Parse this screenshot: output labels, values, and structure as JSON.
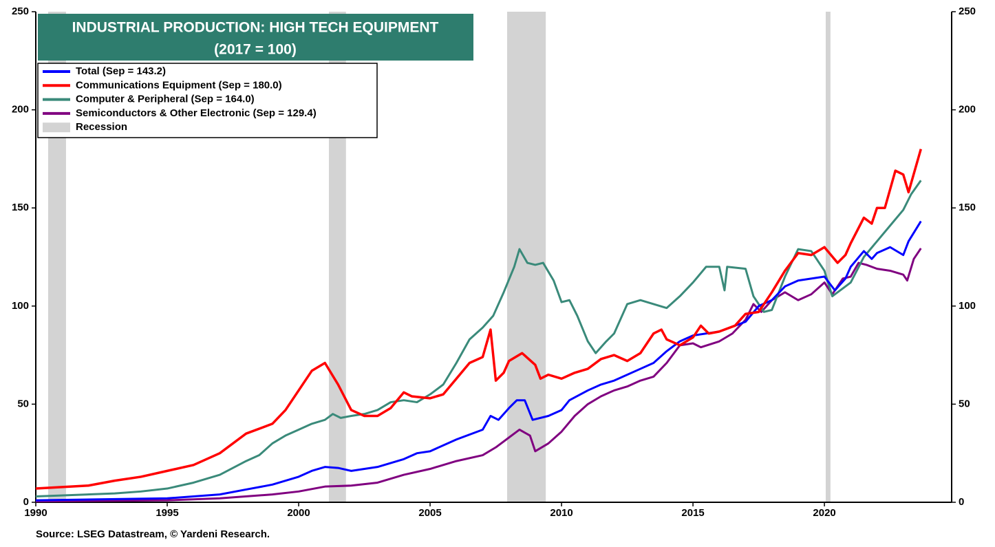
{
  "chart_data": {
    "type": "line",
    "title": "INDUSTRIAL PRODUCTION: HIGH TECH EQUIPMENT",
    "subtitle": "(2017 = 100)",
    "source": "Source: LSEG Datastream, © Yardeni Research.",
    "xlim": [
      1990,
      2024.84
    ],
    "xticks": [
      1990,
      1995,
      2000,
      2005,
      2010,
      2015,
      2020
    ],
    "ylim": [
      0,
      250
    ],
    "yticks": [
      0,
      50,
      100,
      150,
      200,
      250
    ],
    "y2lim": [
      0,
      250
    ],
    "y2ticks": [
      0,
      50,
      100,
      150,
      200,
      250
    ],
    "legend": "upper left",
    "recession_name": "Recession",
    "recession_color": "#d3d3d3",
    "recessions": [
      {
        "start": 1990.47,
        "end": 1991.15
      },
      {
        "start": 2001.15,
        "end": 2001.8
      },
      {
        "start": 2007.93,
        "end": 2009.4
      },
      {
        "start": 2020.05,
        "end": 2020.23
      }
    ],
    "series": [
      {
        "name": "Total (Sep = 143.2)",
        "color": "#0000ff",
        "x": [
          1990,
          1995,
          1997,
          1998,
          1999,
          2000,
          2000.5,
          2001,
          2001.5,
          2002,
          2003,
          2004,
          2004.5,
          2005,
          2006,
          2007,
          2007.3,
          2007.6,
          2008,
          2008.3,
          2008.6,
          2008.9,
          2009.5,
          2010,
          2010.3,
          2011,
          2011.5,
          2012,
          2013,
          2013.5,
          2014,
          2014.5,
          2015,
          2016,
          2017,
          2017.5,
          2018,
          2018.5,
          2019,
          2019.5,
          2020,
          2020.4,
          2020.8,
          2021,
          2021.5,
          2021.8,
          2022,
          2022.5,
          2023,
          2023.2,
          2023.67
        ],
        "values": [
          1,
          2,
          4,
          6.5,
          9,
          13,
          16,
          18,
          17.5,
          16,
          18,
          22,
          25,
          26,
          32,
          37,
          44,
          42,
          48,
          52,
          52,
          42,
          44,
          47,
          52,
          57,
          60,
          62,
          68,
          71,
          77,
          82,
          85,
          87,
          92,
          100,
          103,
          110,
          113,
          114,
          115,
          108,
          114,
          120,
          128,
          124,
          127,
          130,
          126,
          133,
          143.2
        ]
      },
      {
        "name": "Communications Equipment (Sep = 180.0)",
        "color": "#ff0000",
        "x": [
          1990,
          1992,
          1993,
          1994,
          1995,
          1996,
          1997,
          1998,
          1999,
          1999.5,
          2000,
          2000.5,
          2001,
          2001.5,
          2002,
          2002.5,
          2003,
          2003.5,
          2004,
          2004.3,
          2005,
          2005.5,
          2006,
          2006.5,
          2007,
          2007.3,
          2007.5,
          2007.8,
          2008,
          2008.5,
          2009,
          2009.2,
          2009.5,
          2010,
          2010.5,
          2011,
          2011.5,
          2012,
          2012.5,
          2013,
          2013.5,
          2013.8,
          2014,
          2014.5,
          2015,
          2015.3,
          2015.6,
          2016,
          2016.6,
          2017,
          2017.5,
          2018,
          2018.5,
          2019,
          2019.5,
          2020,
          2020.5,
          2020.8,
          2021,
          2021.5,
          2021.8,
          2022,
          2022.3,
          2022.7,
          2023,
          2023.2,
          2023.67
        ],
        "values": [
          7,
          8.5,
          11,
          13,
          16,
          19,
          25,
          35,
          40,
          47,
          57,
          67,
          71,
          60,
          47,
          44,
          44,
          48,
          56,
          54,
          53,
          55,
          63,
          71,
          74,
          88,
          62,
          66,
          72,
          76,
          70,
          63,
          65,
          63,
          66,
          68,
          73,
          75,
          72,
          76,
          86,
          88,
          83,
          80,
          84,
          90,
          86,
          87,
          90,
          96,
          97,
          107,
          118,
          127,
          126,
          130,
          122,
          126,
          132,
          145,
          142,
          150,
          150,
          169,
          167,
          158,
          180
        ]
      },
      {
        "name": "Computer & Peripheral (Sep = 164.0)",
        "color": "#3a8a7a",
        "x": [
          1990,
          1993,
          1994,
          1995,
          1996,
          1997,
          1998,
          1998.5,
          1999,
          1999.5,
          2000,
          2000.5,
          2001,
          2001.3,
          2001.6,
          2002,
          2002.5,
          2003,
          2003.5,
          2004,
          2004.5,
          2005,
          2005.5,
          2006,
          2006.5,
          2007,
          2007.4,
          2007.8,
          2008.2,
          2008.4,
          2008.7,
          2009,
          2009.3,
          2009.7,
          2010,
          2010.3,
          2010.6,
          2011,
          2011.3,
          2011.7,
          2012,
          2012.5,
          2013,
          2013.5,
          2014,
          2014.5,
          2015,
          2015.5,
          2016,
          2016.2,
          2016.3,
          2017,
          2017.3,
          2017.7,
          2018,
          2018.5,
          2019,
          2019.5,
          2020,
          2020.3,
          2020.8,
          2021,
          2021.5,
          2022,
          2022.5,
          2023,
          2023.3,
          2023.67
        ],
        "values": [
          3,
          4.5,
          5.5,
          7,
          10,
          14,
          21,
          24,
          30,
          34,
          37,
          40,
          42,
          45,
          43,
          44,
          45,
          47,
          51,
          52,
          51,
          55,
          60,
          71,
          83,
          89,
          95,
          107,
          120,
          129,
          122,
          121,
          122,
          113,
          102,
          103,
          95,
          82,
          76,
          82,
          86,
          101,
          103,
          101,
          99,
          105,
          112,
          120,
          120,
          108,
          120,
          119,
          105,
          97,
          98,
          115,
          129,
          128,
          118,
          105,
          110,
          112,
          125,
          133,
          141,
          149,
          157,
          164
        ]
      },
      {
        "name": "Semiconductors & Other Electronic (Sep = 129.4)",
        "color": "#800080",
        "x": [
          1990,
          1995,
          1997,
          1999,
          2000,
          2001,
          2002,
          2003,
          2004,
          2005,
          2006,
          2007,
          2007.5,
          2008,
          2008.4,
          2008.8,
          2009,
          2009.5,
          2010,
          2010.5,
          2011,
          2011.5,
          2012,
          2012.5,
          2013,
          2013.5,
          2014,
          2014.5,
          2015,
          2015.3,
          2016,
          2016.5,
          2017,
          2017.3,
          2017.6,
          2018,
          2018.5,
          2019,
          2019.5,
          2020,
          2020.3,
          2020.7,
          2021,
          2021.3,
          2021.6,
          2022,
          2022.5,
          2023,
          2023.15,
          2023.4,
          2023.67
        ],
        "values": [
          0.5,
          1,
          2,
          4,
          5.5,
          8,
          8.5,
          10,
          14,
          17,
          21,
          24,
          28,
          33,
          37,
          34,
          26,
          30,
          36,
          44,
          50,
          54,
          57,
          59,
          62,
          64,
          71,
          80,
          81,
          79,
          82,
          86,
          93,
          101,
          97,
          103,
          107,
          103,
          106,
          112,
          106,
          114,
          115,
          122,
          121,
          119,
          118,
          116,
          113,
          124,
          129.4
        ]
      }
    ]
  }
}
